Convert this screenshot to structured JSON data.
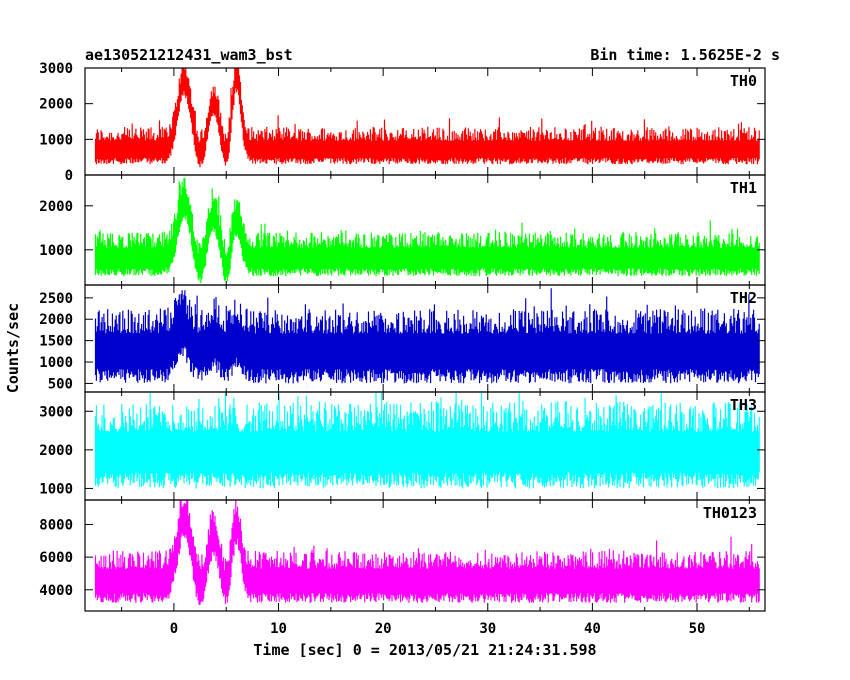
{
  "chart_data": {
    "type": "line",
    "title_left": "ae130521212431_wam3_bst",
    "title_right": "Bin time: 1.5625E-2 s",
    "xlabel": "Time [sec] 0 = 2013/05/21 21:24:31.598",
    "ylabel": "Counts/sec",
    "xlim": [
      -8.5,
      56.5
    ],
    "x_ticks": [
      0,
      10,
      20,
      30,
      40,
      50
    ],
    "x_start": -7.5,
    "x_end": 56,
    "bin_time": 0.015625,
    "panels": [
      {
        "name": "TH0",
        "color": "#ff0000",
        "ylim": [
          0,
          3000
        ],
        "y_ticks": [
          0,
          1000,
          2000,
          3000
        ],
        "baseline": 750,
        "noise_low": 450,
        "noise_high": 600,
        "peaks": [
          {
            "t": 1.0,
            "amp": 1900,
            "w": 0.9
          },
          {
            "t": 3.8,
            "amp": 1300,
            "w": 0.7
          },
          {
            "t": 6.0,
            "amp": 2000,
            "w": 0.6
          }
        ],
        "dip_after": 250
      },
      {
        "name": "TH1",
        "color": "#00ff00",
        "ylim": [
          200,
          2700
        ],
        "y_ticks": [
          1000,
          2000
        ],
        "baseline": 850,
        "noise_low": 450,
        "noise_high": 550,
        "peaks": [
          {
            "t": 1.0,
            "amp": 1300,
            "w": 0.9
          },
          {
            "t": 3.8,
            "amp": 1000,
            "w": 0.7
          },
          {
            "t": 6.0,
            "amp": 900,
            "w": 0.6
          }
        ],
        "dip_after": 300
      },
      {
        "name": "TH2",
        "color": "#0000cc",
        "ylim": [
          300,
          2800
        ],
        "y_ticks": [
          500,
          1000,
          1500,
          2000,
          2500
        ],
        "baseline": 1350,
        "noise_low": 850,
        "noise_high": 900,
        "peaks": [
          {
            "t": 0.8,
            "amp": 600,
            "w": 0.8
          },
          {
            "t": 3.8,
            "amp": 300,
            "w": 0.7
          },
          {
            "t": 6.0,
            "amp": 300,
            "w": 0.6
          }
        ],
        "dip_after": 0
      },
      {
        "name": "TH3",
        "color": "#00ffff",
        "ylim": [
          700,
          3500
        ],
        "y_ticks": [
          1000,
          2000,
          3000
        ],
        "baseline": 2050,
        "noise_low": 1050,
        "noise_high": 1200,
        "peaks": [],
        "dip_after": 0
      },
      {
        "name": "TH0123",
        "color": "#ff00ff",
        "ylim": [
          2700,
          9500
        ],
        "y_ticks": [
          4000,
          6000,
          8000
        ],
        "baseline": 4700,
        "noise_low": 1500,
        "noise_high": 1700,
        "peaks": [
          {
            "t": 1.0,
            "amp": 3900,
            "w": 0.9
          },
          {
            "t": 3.8,
            "amp": 2800,
            "w": 0.7
          },
          {
            "t": 6.0,
            "amp": 3500,
            "w": 0.6
          }
        ],
        "dip_after": 600
      }
    ]
  }
}
